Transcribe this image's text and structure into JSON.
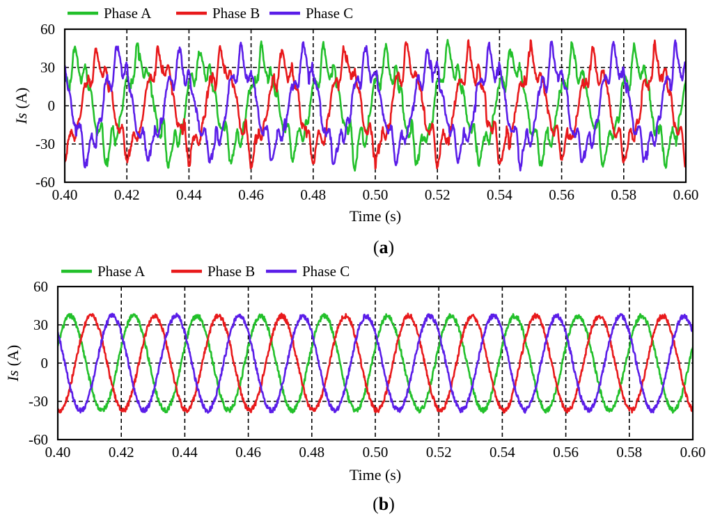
{
  "chart_data": [
    {
      "panel": "(a)",
      "panel_label": {
        "open": "(",
        "letter": "a",
        "close": ")"
      },
      "type": "line",
      "xlabel": "Time (s)",
      "ylabel_symbol": "Is",
      "ylabel_unit": "(A)",
      "xlim": [
        0.4,
        0.6
      ],
      "ylim": [
        -60,
        60
      ],
      "x_ticks": [
        "0.40",
        "0.42",
        "0.44",
        "0.46",
        "0.48",
        "0.50",
        "0.52",
        "0.54",
        "0.56",
        "0.58",
        "0.60"
      ],
      "y_ticks": [
        "60",
        "30",
        "0",
        "-30",
        "-60"
      ],
      "grid": "dashed",
      "legend_position": "top",
      "waveform": "distorted",
      "fundamental_frequency_hz": 50,
      "amplitude_a": 37,
      "series": [
        {
          "name": "Phase A",
          "color": "#22c02a",
          "phase_deg": 0
        },
        {
          "name": "Phase B",
          "color": "#e8191b",
          "phase_deg": -120
        },
        {
          "name": "Phase C",
          "color": "#5a1de8",
          "phase_deg": 120
        }
      ]
    },
    {
      "panel": "(b)",
      "panel_label": {
        "open": "(",
        "letter": "b",
        "close": ")"
      },
      "type": "line",
      "xlabel": "Time (s)",
      "ylabel_symbol": "Is",
      "ylabel_unit": "(A)",
      "xlim": [
        0.4,
        0.6
      ],
      "ylim": [
        -60,
        60
      ],
      "x_ticks": [
        "0.40",
        "0.42",
        "0.44",
        "0.46",
        "0.48",
        "0.50",
        "0.52",
        "0.54",
        "0.56",
        "0.58",
        "0.60"
      ],
      "y_ticks": [
        "60",
        "30",
        "0",
        "-30",
        "-60"
      ],
      "grid": "dashed",
      "legend_position": "top",
      "waveform": "sinusoidal",
      "fundamental_frequency_hz": 50,
      "amplitude_a": 37,
      "series": [
        {
          "name": "Phase A",
          "color": "#22c02a",
          "phase_deg": 0
        },
        {
          "name": "Phase B",
          "color": "#e8191b",
          "phase_deg": -120
        },
        {
          "name": "Phase C",
          "color": "#5a1de8",
          "phase_deg": 120
        }
      ]
    }
  ]
}
